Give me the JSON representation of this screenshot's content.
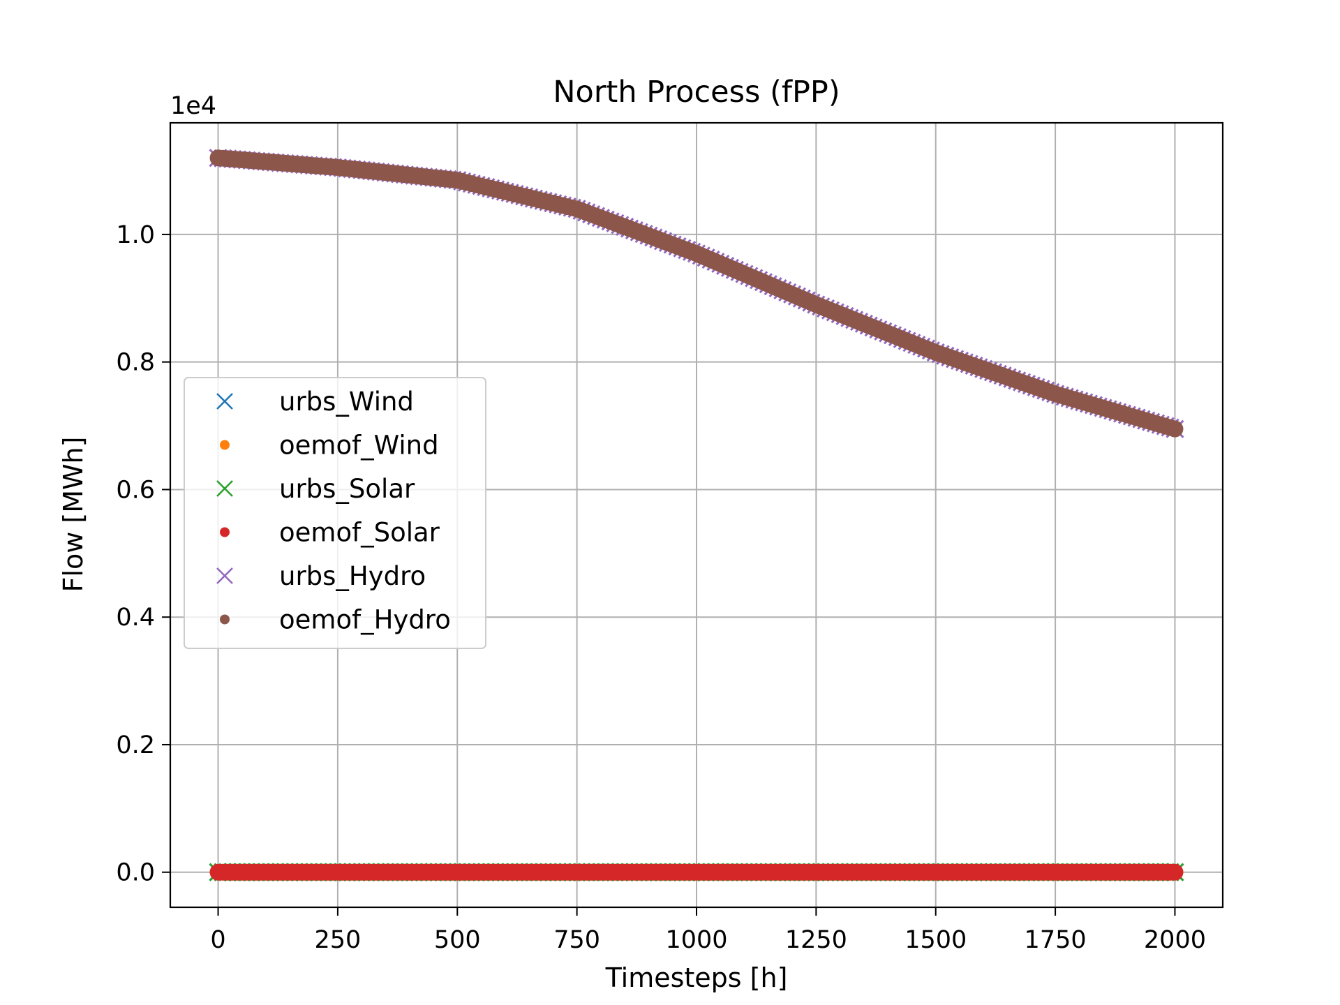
{
  "chart_data": {
    "type": "scatter",
    "title": "North Process (fPP)",
    "xlabel": "Timesteps [h]",
    "ylabel": "Flow [MWh]",
    "y_offset_label": "1e4",
    "xlim": [
      -100,
      2100
    ],
    "ylim": [
      -0.055,
      1.175
    ],
    "xticks": [
      0,
      250,
      500,
      750,
      1000,
      1250,
      1500,
      1750,
      2000
    ],
    "xtick_labels": [
      "0",
      "250",
      "500",
      "750",
      "1000",
      "1250",
      "1500",
      "1750",
      "2000"
    ],
    "yticks": [
      0.0,
      0.2,
      0.4,
      0.6,
      0.8,
      1.0
    ],
    "ytick_labels": [
      "0.0",
      "0.2",
      "0.4",
      "0.6",
      "0.8",
      "1.0"
    ],
    "grid": true,
    "legend_position": "center-left",
    "x_range": [
      0,
      2000
    ],
    "series": [
      {
        "name": "urbs_Wind",
        "marker": "x",
        "color": "#1f77b4",
        "x": [
          0,
          2000
        ],
        "y": [
          0,
          0
        ]
      },
      {
        "name": "oemof_Wind",
        "marker": "o",
        "color": "#ff7f0e",
        "x": [
          0,
          2000
        ],
        "y": [
          0,
          0
        ]
      },
      {
        "name": "urbs_Solar",
        "marker": "x",
        "color": "#2ca02c",
        "x": [
          0,
          2000
        ],
        "y": [
          0,
          0
        ]
      },
      {
        "name": "oemof_Solar",
        "marker": "o",
        "color": "#d62728",
        "x": [
          0,
          2000
        ],
        "y": [
          0,
          0
        ]
      },
      {
        "name": "urbs_Hydro",
        "marker": "x",
        "color": "#9467bd",
        "x": [
          0,
          250,
          500,
          750,
          1000,
          1250,
          1500,
          1750,
          2000
        ],
        "y": [
          1.12,
          1.105,
          1.085,
          1.04,
          0.97,
          0.89,
          0.815,
          0.75,
          0.695
        ]
      },
      {
        "name": "oemof_Hydro",
        "marker": "o",
        "color": "#8c564b",
        "x": [
          0,
          250,
          500,
          750,
          1000,
          1250,
          1500,
          1750,
          2000
        ],
        "y": [
          1.12,
          1.105,
          1.085,
          1.04,
          0.97,
          0.89,
          0.815,
          0.75,
          0.695
        ]
      }
    ]
  }
}
